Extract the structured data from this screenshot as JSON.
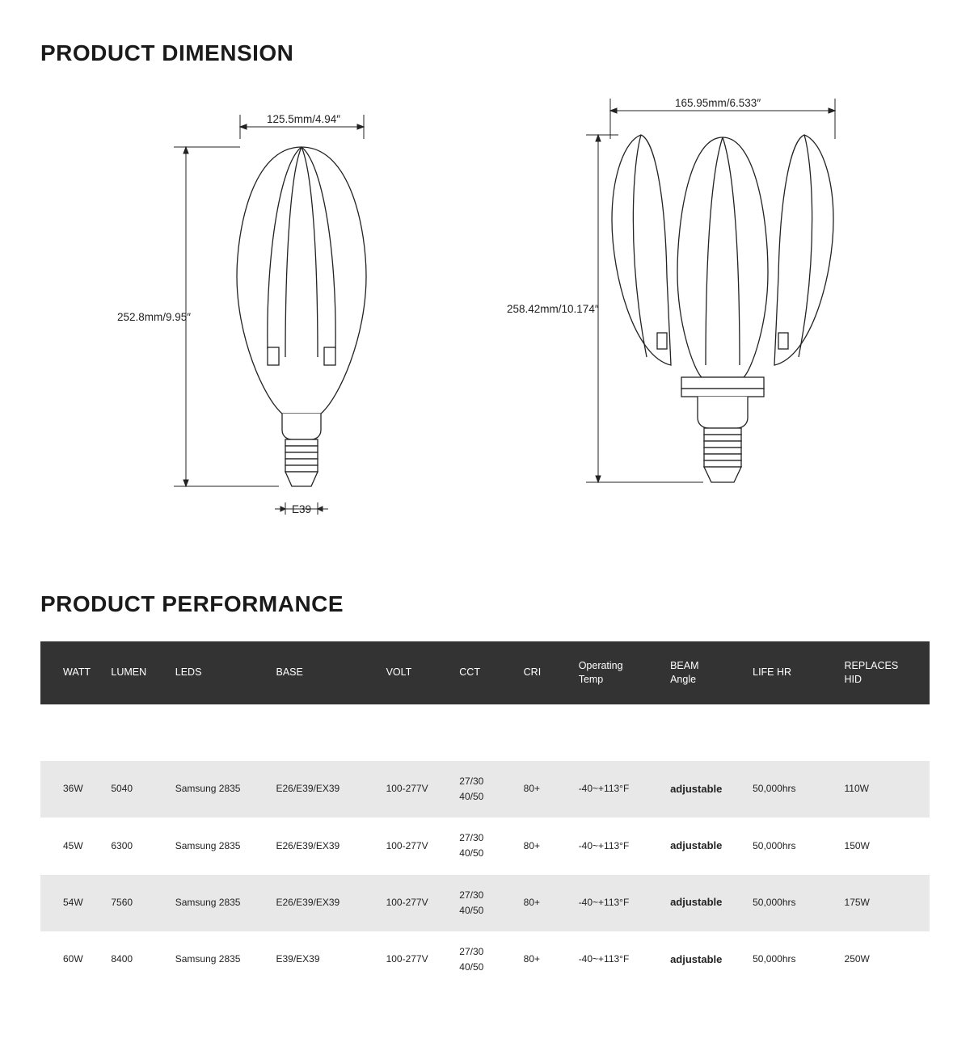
{
  "sections": {
    "dimension_title": "PRODUCT DIMENSION",
    "performance_title": "PRODUCT PERFORMANCE"
  },
  "diagram_closed": {
    "width_label": "125.5mm/4.94″",
    "height_label": "252.8mm/9.95″",
    "base_label": "E39"
  },
  "diagram_open": {
    "width_label": "165.95mm/6.533″",
    "height_label": "258.42mm/10.174″"
  },
  "table": {
    "header_bg": "#333333",
    "header_fg": "#ffffff",
    "row_shade_bg": "#e8e8e8",
    "columns": [
      "WATT",
      "LUMEN",
      "LEDS",
      "BASE",
      "VOLT",
      "CCT",
      "CRI",
      "Operating\nTemp",
      "BEAM\nAngle",
      "LIFE HR",
      "REPLACES\nHID"
    ],
    "rows": [
      {
        "watt": "36W",
        "lumen": "5040",
        "leds": "Samsung 2835",
        "base": "E26/E39/EX39",
        "volt": "100-277V",
        "cct": "27/30\n40/50",
        "cri": "80+",
        "temp": "-40~+113°F",
        "beam": "adjustable",
        "life": "50,000hrs",
        "hid": "110W"
      },
      {
        "watt": "45W",
        "lumen": "6300",
        "leds": "Samsung 2835",
        "base": "E26/E39/EX39",
        "volt": "100-277V",
        "cct": "27/30\n40/50",
        "cri": "80+",
        "temp": "-40~+113°F",
        "beam": "adjustable",
        "life": "50,000hrs",
        "hid": "150W"
      },
      {
        "watt": "54W",
        "lumen": "7560",
        "leds": "Samsung 2835",
        "base": "E26/E39/EX39",
        "volt": "100-277V",
        "cct": "27/30\n40/50",
        "cri": "80+",
        "temp": "-40~+113°F",
        "beam": "adjustable",
        "life": "50,000hrs",
        "hid": "175W"
      },
      {
        "watt": "60W",
        "lumen": "8400",
        "leds": "Samsung 2835",
        "base": "E39/EX39",
        "volt": "100-277V",
        "cct": "27/30\n40/50",
        "cri": "80+",
        "temp": "-40~+113°F",
        "beam": "adjustable",
        "life": "50,000hrs",
        "hid": "250W"
      }
    ]
  }
}
